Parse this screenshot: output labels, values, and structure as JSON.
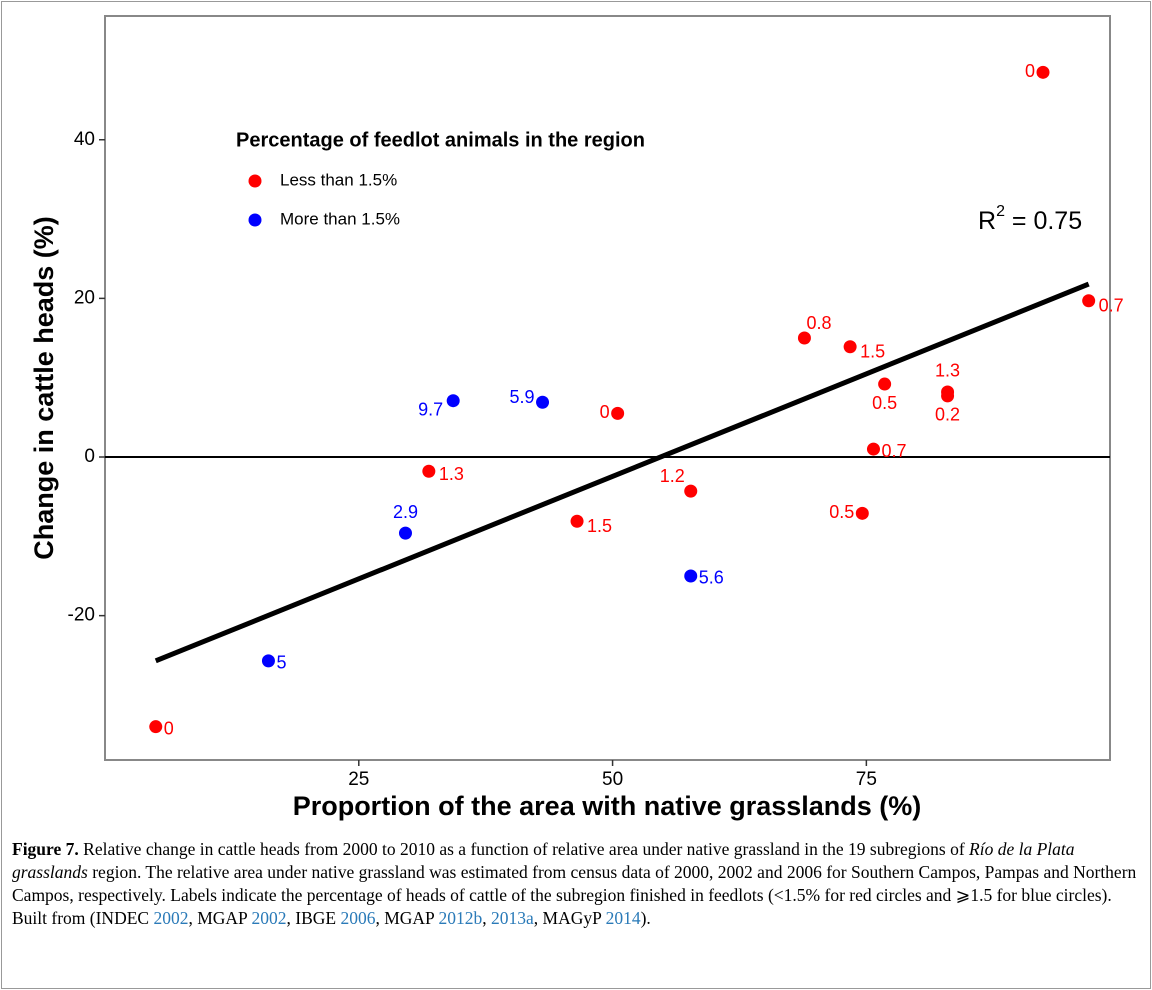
{
  "chart_data": {
    "type": "scatter",
    "xlabel": "Proportion of the area with native grasslands (%)",
    "ylabel": "Change in cattle heads (%)",
    "xlim": [
      0,
      99
    ],
    "ylim": [
      -38.2,
      55.6
    ],
    "xticks": [
      25,
      50,
      75
    ],
    "yticks": [
      -20,
      0,
      20,
      40
    ],
    "hline": 0,
    "legend": {
      "title": "Percentage of feedlot animals in the region",
      "position": "top-left"
    },
    "series": [
      {
        "name": "Less than 1.5%",
        "color": "#ff0000",
        "x": [
          5.0,
          92.4,
          96.9,
          68.9,
          73.4,
          76.8,
          83.0,
          83.0,
          75.7,
          74.6,
          57.7,
          50.5,
          46.5,
          31.9
        ],
        "y": [
          -34.0,
          48.5,
          19.7,
          15.0,
          13.9,
          9.2,
          8.2,
          7.7,
          1.0,
          -7.1,
          -4.3,
          5.5,
          -8.1,
          -1.8
        ],
        "labels": [
          "0",
          "0",
          "0.7",
          "0.8",
          "1.5",
          "0.5",
          "1.3",
          "0.2",
          "0.7",
          "0.5",
          "1.2",
          "0",
          "1.5",
          "1.3"
        ]
      },
      {
        "name": "More than 1.5%",
        "color": "#0000ff",
        "x": [
          34.3,
          43.1,
          29.6,
          57.7,
          16.1
        ],
        "y": [
          7.1,
          6.9,
          -9.6,
          -15.0,
          -25.7
        ],
        "labels": [
          "9.7",
          "5.9",
          "2.9",
          "5.6",
          "5"
        ]
      }
    ],
    "trend_line": {
      "x": [
        5.0,
        96.9
      ],
      "y": [
        -25.7,
        21.8
      ],
      "color": "#000000"
    },
    "r_squared": {
      "base": "R",
      "sup": "2",
      "rest": " = 0.75"
    }
  },
  "caption": {
    "label": "Figure 7.",
    "segments": [
      {
        "text": " Relative change in cattle heads from 2000 to 2010 as a function of relative area under native grassland in the 19 subregions of "
      },
      {
        "text": "Río de la Plata grasslands",
        "italic": true
      },
      {
        "text": " region. The relative area under native grassland was estimated from census data of 2000, 2002 and 2006 for Southern Campos, Pampas and Northern Campos, respectively. Labels indicate the percentage of heads of cattle of the subregion finished in feedlots (<1.5% for red circles and ⩾1.5 for blue circles). Built from (INDEC "
      },
      {
        "text": "2002",
        "link": true
      },
      {
        "text": ", MGAP "
      },
      {
        "text": "2002",
        "link": true
      },
      {
        "text": ", IBGE "
      },
      {
        "text": "2006",
        "link": true
      },
      {
        "text": ", MGAP "
      },
      {
        "text": "2012b",
        "link": true
      },
      {
        "text": ", "
      },
      {
        "text": "2013a",
        "link": true
      },
      {
        "text": ", MAGyP "
      },
      {
        "text": "2014",
        "link": true
      },
      {
        "text": ")."
      }
    ]
  }
}
